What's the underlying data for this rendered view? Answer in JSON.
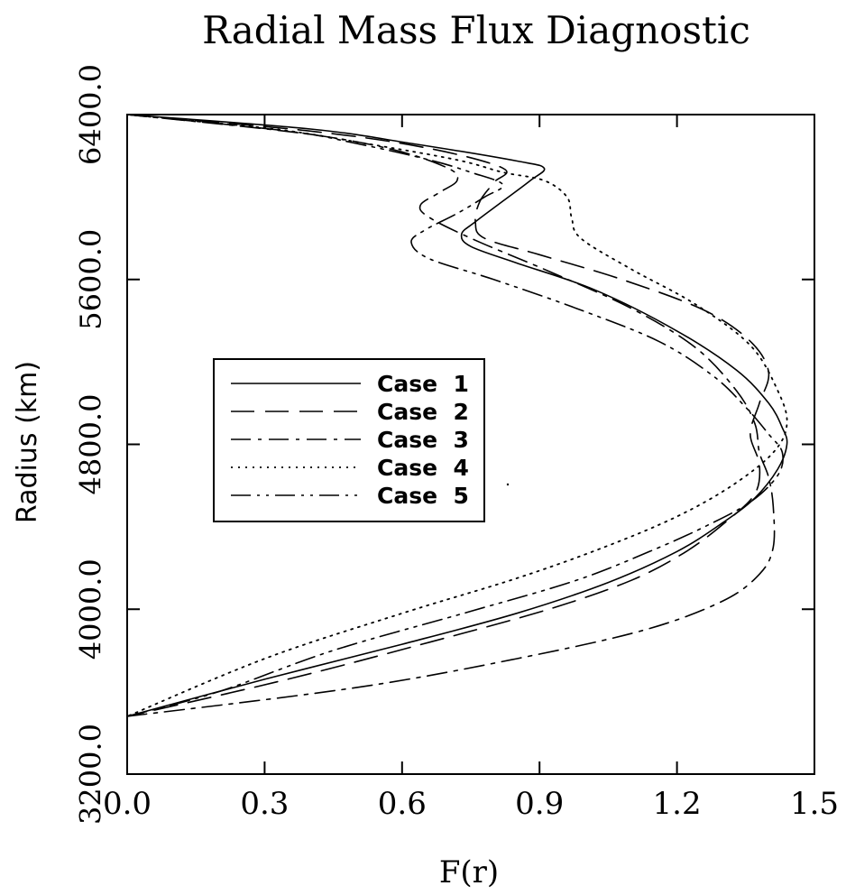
{
  "chart_data": {
    "type": "line",
    "title": "Radial Mass Flux Diagnostic",
    "xlabel": "F(r)",
    "ylabel": "Radius (km)",
    "xlim": [
      0.0,
      1.5
    ],
    "ylim": [
      3200.0,
      6400.0
    ],
    "x_ticks": [
      "0.0",
      "0.3",
      "0.6",
      "0.9",
      "1.2",
      "1.5"
    ],
    "y_ticks": [
      "3200.0",
      "4000.0",
      "4800.0",
      "5600.0",
      "6400.0"
    ],
    "grid": false,
    "legend_position": "left",
    "series": [
      {
        "name": "Case 1",
        "dash": "solid",
        "points": [
          [
            0.0,
            6400
          ],
          [
            0.4,
            6330
          ],
          [
            0.62,
            6260
          ],
          [
            0.85,
            6175
          ],
          [
            0.91,
            6140
          ],
          [
            0.88,
            6080
          ],
          [
            0.82,
            5980
          ],
          [
            0.76,
            5880
          ],
          [
            0.73,
            5820
          ],
          [
            0.75,
            5760
          ],
          [
            0.85,
            5680
          ],
          [
            1.02,
            5550
          ],
          [
            1.2,
            5350
          ],
          [
            1.33,
            5160
          ],
          [
            1.4,
            5000
          ],
          [
            1.43,
            4880
          ],
          [
            1.44,
            4800
          ],
          [
            1.42,
            4680
          ],
          [
            1.37,
            4540
          ],
          [
            1.3,
            4420
          ],
          [
            1.2,
            4280
          ],
          [
            1.05,
            4130
          ],
          [
            0.85,
            3980
          ],
          [
            0.6,
            3830
          ],
          [
            0.3,
            3660
          ],
          [
            0.0,
            3480
          ]
        ]
      },
      {
        "name": "Case 2",
        "dash": "long-dash",
        "points": [
          [
            0.0,
            6400
          ],
          [
            0.4,
            6320
          ],
          [
            0.65,
            6240
          ],
          [
            0.82,
            6140
          ],
          [
            0.8,
            6070
          ],
          [
            0.77,
            5980
          ],
          [
            0.76,
            5880
          ],
          [
            0.78,
            5800
          ],
          [
            0.9,
            5720
          ],
          [
            1.08,
            5600
          ],
          [
            1.26,
            5450
          ],
          [
            1.36,
            5300
          ],
          [
            1.4,
            5150
          ],
          [
            1.38,
            5000
          ],
          [
            1.36,
            4850
          ],
          [
            1.38,
            4700
          ],
          [
            1.37,
            4560
          ],
          [
            1.31,
            4430
          ],
          [
            1.22,
            4280
          ],
          [
            1.1,
            4140
          ],
          [
            0.92,
            4000
          ],
          [
            0.66,
            3840
          ],
          [
            0.35,
            3660
          ],
          [
            0.0,
            3480
          ]
        ]
      },
      {
        "name": "Case 3",
        "dash": "dash-dot",
        "points": [
          [
            0.0,
            6400
          ],
          [
            0.38,
            6310
          ],
          [
            0.58,
            6230
          ],
          [
            0.7,
            6140
          ],
          [
            0.72,
            6080
          ],
          [
            0.68,
            6020
          ],
          [
            0.64,
            5960
          ],
          [
            0.66,
            5900
          ],
          [
            0.76,
            5790
          ],
          [
            0.92,
            5640
          ],
          [
            1.1,
            5460
          ],
          [
            1.24,
            5270
          ],
          [
            1.33,
            5060
          ],
          [
            1.37,
            4900
          ],
          [
            1.38,
            4760
          ],
          [
            1.4,
            4640
          ],
          [
            1.41,
            4500
          ],
          [
            1.41,
            4300
          ],
          [
            1.38,
            4170
          ],
          [
            1.3,
            4040
          ],
          [
            1.13,
            3900
          ],
          [
            0.85,
            3760
          ],
          [
            0.5,
            3620
          ],
          [
            0.0,
            3480
          ]
        ]
      },
      {
        "name": "Case 4",
        "dash": "dotted",
        "points": [
          [
            0.0,
            6400
          ],
          [
            0.32,
            6330
          ],
          [
            0.52,
            6260
          ],
          [
            0.72,
            6180
          ],
          [
            0.82,
            6120
          ],
          [
            0.91,
            6080
          ],
          [
            0.96,
            6000
          ],
          [
            0.97,
            5900
          ],
          [
            0.99,
            5800
          ],
          [
            1.1,
            5650
          ],
          [
            1.24,
            5480
          ],
          [
            1.36,
            5280
          ],
          [
            1.42,
            5060
          ],
          [
            1.44,
            4900
          ],
          [
            1.41,
            4760
          ],
          [
            1.32,
            4600
          ],
          [
            1.2,
            4450
          ],
          [
            1.04,
            4300
          ],
          [
            0.85,
            4150
          ],
          [
            0.6,
            3980
          ],
          [
            0.3,
            3760
          ],
          [
            0.0,
            3480
          ]
        ]
      },
      {
        "name": "Case 5",
        "dash": "dash-dot-dot",
        "points": [
          [
            0.0,
            6400
          ],
          [
            0.35,
            6320
          ],
          [
            0.5,
            6260
          ],
          [
            0.66,
            6180
          ],
          [
            0.75,
            6120
          ],
          [
            0.82,
            6060
          ],
          [
            0.78,
            6000
          ],
          [
            0.72,
            5920
          ],
          [
            0.65,
            5840
          ],
          [
            0.62,
            5780
          ],
          [
            0.66,
            5700
          ],
          [
            0.8,
            5600
          ],
          [
            0.98,
            5460
          ],
          [
            1.16,
            5300
          ],
          [
            1.28,
            5130
          ],
          [
            1.35,
            4980
          ],
          [
            1.4,
            4850
          ],
          [
            1.43,
            4760
          ],
          [
            1.42,
            4650
          ],
          [
            1.36,
            4520
          ],
          [
            1.26,
            4400
          ],
          [
            1.14,
            4280
          ],
          [
            0.98,
            4140
          ],
          [
            0.75,
            3990
          ],
          [
            0.45,
            3800
          ],
          [
            0.2,
            3600
          ],
          [
            0.0,
            3480
          ]
        ]
      }
    ]
  },
  "styles": {
    "line_color": "#000000",
    "background": "#ffffff"
  }
}
